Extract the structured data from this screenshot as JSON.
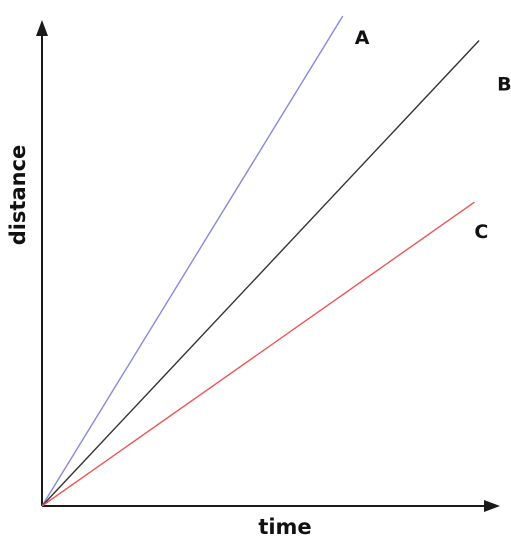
{
  "chart_data": {
    "type": "line",
    "xlabel": "time",
    "ylabel": "distance",
    "xlim": [
      0,
      1
    ],
    "ylim": [
      0,
      1
    ],
    "grid": false,
    "legend": "none",
    "series": [
      {
        "name": "A",
        "color": "#8888dd",
        "x": [
          0,
          0.64
        ],
        "y": [
          0,
          1.0
        ]
      },
      {
        "name": "B",
        "color": "#333333",
        "x": [
          0,
          0.93
        ],
        "y": [
          0,
          0.95
        ]
      },
      {
        "name": "C",
        "color": "#ee5555",
        "x": [
          0,
          0.92
        ],
        "y": [
          0,
          0.62
        ]
      }
    ]
  }
}
